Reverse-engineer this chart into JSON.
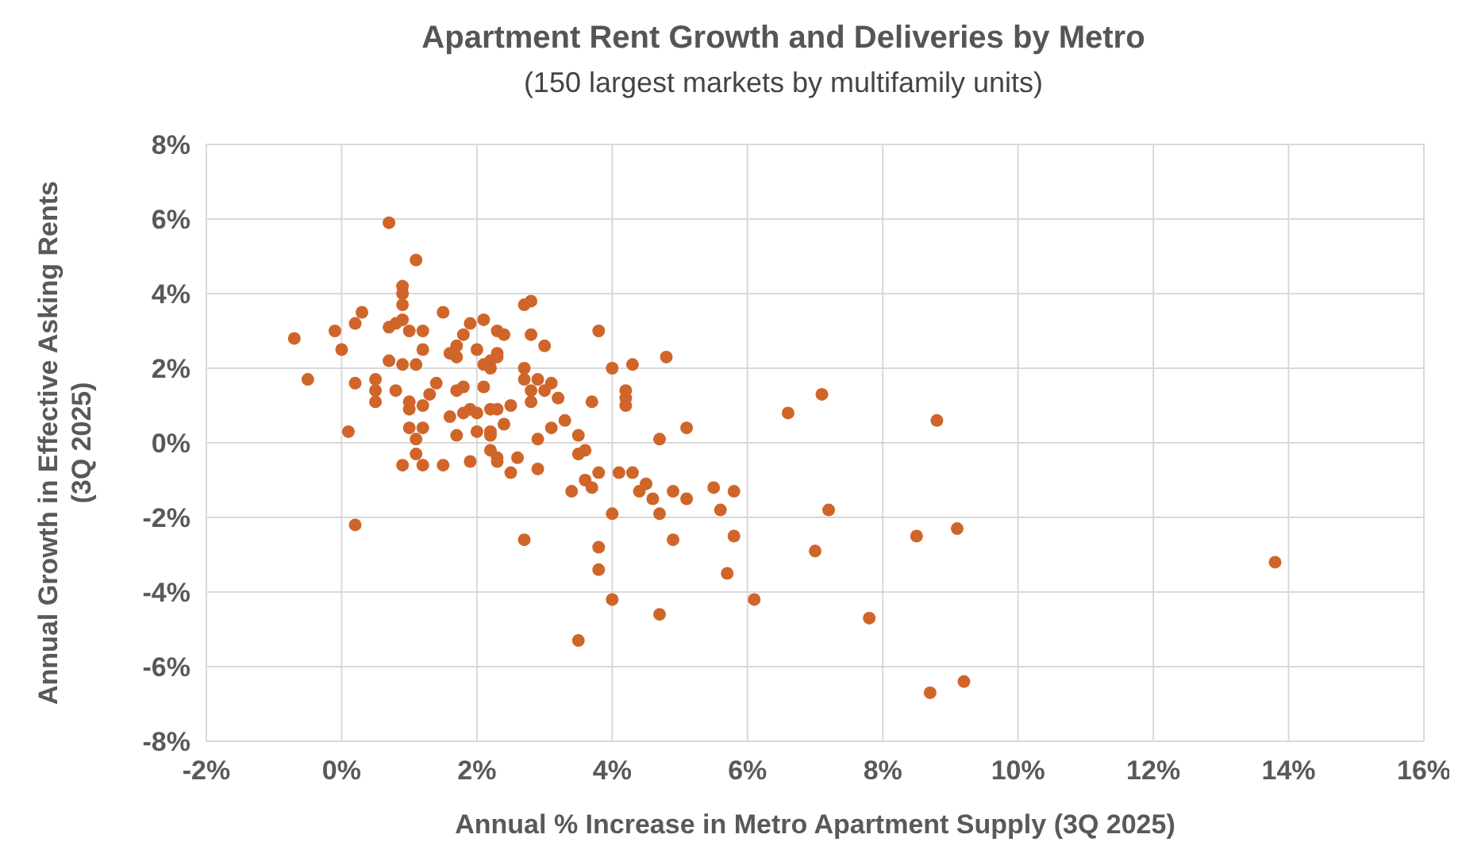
{
  "chart_data": {
    "type": "scatter",
    "title": "Apartment Rent Growth and Deliveries by Metro",
    "subtitle": "(150 largest markets by multifamily units)",
    "xlabel": "Annual % Increase in Metro Apartment Supply (3Q 2025)",
    "ylabel": "Annual Growth in Effective Asking Rents\n(3Q 2025)",
    "xlim": [
      -2,
      16
    ],
    "xticks": [
      {
        "value": -2,
        "label": "-2%"
      },
      {
        "value": 0,
        "label": "0%"
      },
      {
        "value": 2,
        "label": "2%"
      },
      {
        "value": 4,
        "label": "4%"
      },
      {
        "value": 6,
        "label": "6%"
      },
      {
        "value": 8,
        "label": "8%"
      },
      {
        "value": 10,
        "label": "10%"
      },
      {
        "value": 12,
        "label": "12%"
      },
      {
        "value": 14,
        "label": "14%"
      },
      {
        "value": 16,
        "label": "16%"
      }
    ],
    "ylim": [
      -8,
      8
    ],
    "yticks": [
      {
        "value": -8,
        "label": "-8%"
      },
      {
        "value": -6,
        "label": "-6%"
      },
      {
        "value": -4,
        "label": "-4%"
      },
      {
        "value": -2,
        "label": "-2%"
      },
      {
        "value": 0,
        "label": "0%"
      },
      {
        "value": 2,
        "label": "2%"
      },
      {
        "value": 4,
        "label": "4%"
      },
      {
        "value": 6,
        "label": "6%"
      },
      {
        "value": 8,
        "label": "8%"
      }
    ],
    "grid": true,
    "marker": "circle",
    "series": [
      {
        "color": "#d0652a",
        "x": [
          0.7,
          1.1,
          0.9,
          0.9,
          0.9,
          0.3,
          0.2,
          -0.7,
          -0.1,
          0.0,
          0.7,
          0.8,
          0.9,
          1.0,
          1.2,
          1.2,
          1.5,
          0.7,
          0.9,
          1.1,
          -0.5,
          0.2,
          0.5,
          0.5,
          0.5,
          0.8,
          1.0,
          1.0,
          1.2,
          1.3,
          1.4,
          1.0,
          1.2,
          1.1,
          0.1,
          1.1,
          0.9,
          1.2,
          1.5,
          1.9,
          0.2,
          1.7,
          1.6,
          1.8,
          1.7,
          1.8,
          2.1,
          1.6,
          1.7,
          1.8,
          2.0,
          1.7,
          1.9,
          2.1,
          2.2,
          2.3,
          2.3,
          1.9,
          2.0,
          2.2,
          2.2,
          2.2,
          2.3,
          2.7,
          2.8,
          2.4,
          2.8,
          3.0,
          3.8,
          4.8,
          4.0,
          4.3,
          2.3,
          2.1,
          2.2,
          2.7,
          2.7,
          2.9,
          3.1,
          2.8,
          3.0,
          3.2,
          2.8,
          3.7,
          4.2,
          4.2,
          4.2,
          2.5,
          2.3,
          2.4,
          2.0,
          2.2,
          3.3,
          3.1,
          3.5,
          2.9,
          5.1,
          4.7,
          2.3,
          2.6,
          2.5,
          2.9,
          3.5,
          3.6,
          3.8,
          3.6,
          3.7,
          3.4,
          4.1,
          4.3,
          4.5,
          4.4,
          4.6,
          4.9,
          5.1,
          5.5,
          5.8,
          5.6,
          4.7,
          4.0,
          4.9,
          5.8,
          2.7,
          3.8,
          3.8,
          5.7,
          4.0,
          4.7,
          3.5,
          7.1,
          6.6,
          8.8,
          7.2,
          7.0,
          8.5,
          9.1,
          6.1,
          7.8,
          9.2,
          8.7,
          13.8
        ],
        "values": [
          5.9,
          4.9,
          4.2,
          4.0,
          3.7,
          3.5,
          3.2,
          2.8,
          3.0,
          2.5,
          3.1,
          3.2,
          3.3,
          3.0,
          3.0,
          2.5,
          3.5,
          2.2,
          2.1,
          2.1,
          1.7,
          1.6,
          1.7,
          1.4,
          1.1,
          1.4,
          1.1,
          0.9,
          1.0,
          1.3,
          1.6,
          0.4,
          0.4,
          0.1,
          0.3,
          -0.3,
          -0.6,
          -0.6,
          -0.6,
          -0.5,
          -2.2,
          0.2,
          0.7,
          0.8,
          1.4,
          1.5,
          1.5,
          2.4,
          2.6,
          2.9,
          2.5,
          2.3,
          3.2,
          3.3,
          2.2,
          2.4,
          3.0,
          0.9,
          0.3,
          0.3,
          0.9,
          -0.2,
          -0.4,
          3.7,
          3.8,
          2.9,
          2.9,
          2.6,
          3.0,
          2.3,
          2.0,
          2.1,
          2.3,
          2.1,
          2.0,
          2.0,
          1.7,
          1.7,
          1.6,
          1.4,
          1.4,
          1.2,
          1.1,
          1.1,
          1.4,
          1.2,
          1.0,
          1.0,
          0.9,
          0.5,
          0.8,
          0.2,
          0.6,
          0.4,
          0.2,
          0.1,
          0.4,
          0.1,
          -0.5,
          -0.4,
          -0.8,
          -0.7,
          -0.3,
          -0.2,
          -0.8,
          -1.0,
          -1.2,
          -1.3,
          -0.8,
          -0.8,
          -1.1,
          -1.3,
          -1.5,
          -1.3,
          -1.5,
          -1.2,
          -1.3,
          -1.8,
          -1.9,
          -1.9,
          -2.6,
          -2.5,
          -2.6,
          -2.8,
          -3.4,
          -3.5,
          -4.2,
          -4.6,
          -5.3,
          1.3,
          0.8,
          0.6,
          -1.8,
          -2.9,
          -2.5,
          -2.3,
          -4.2,
          -4.7,
          -6.4,
          -6.7,
          -3.2
        ]
      }
    ]
  }
}
